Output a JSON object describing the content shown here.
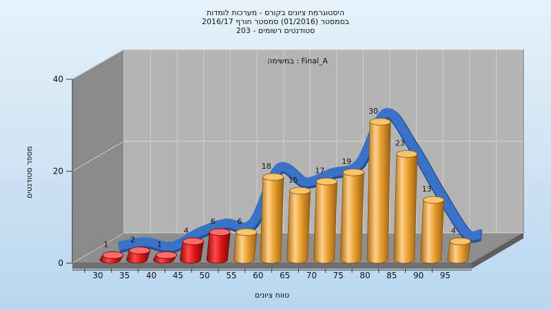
{
  "chart_data": {
    "type": "bar",
    "title_lines": [
      "היסטוגרמת ציונים בקורס - מערכות לומדות",
      "בסמסטר  (01/2016)  סמסטר חורף  2016/17",
      "203 - סטודנטים רשומים"
    ],
    "inner_label": "במשימה : Final_A",
    "xlabel": "טווח ציונים",
    "ylabel": "מספר סטודנטים",
    "categories": [
      "30",
      "35",
      "40",
      "45",
      "50",
      "55",
      "60",
      "65",
      "70",
      "75",
      "80",
      "85",
      "90",
      "95"
    ],
    "values": [
      1,
      2,
      1,
      4,
      6,
      6,
      18,
      15,
      17,
      19,
      30,
      23,
      13,
      4
    ],
    "y_ticks": [
      "0",
      "20",
      "40"
    ],
    "ylim": [
      0,
      40
    ],
    "bar_colors": [
      "#e01818",
      "#e01818",
      "#e01818",
      "#e01818",
      "#e01818",
      "#e8a030",
      "#e8a030",
      "#e8a030",
      "#e8a030",
      "#e8a030",
      "#e8a030",
      "#e8a030",
      "#e8a030",
      "#e8a030"
    ],
    "curve_color": "#3a72c8",
    "grid": true,
    "legend": "none"
  }
}
